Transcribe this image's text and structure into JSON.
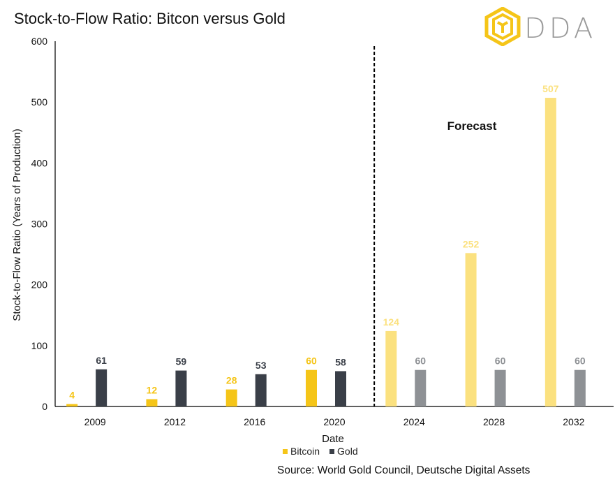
{
  "title": "Stock-to-Flow Ratio: Bitcon versus Gold",
  "logo": {
    "text": "DDA",
    "icon": "dda-logo-icon",
    "accent": "#F5C518"
  },
  "source": "Source: World Gold Council, Deutsche Digital Assets",
  "colors": {
    "bitcoin": "#F5C518",
    "bitcoin_forecast": "#FBE17F",
    "gold": "#3A3F48",
    "gold_forecast": "#8E9195"
  },
  "chart_data": {
    "type": "bar",
    "title": "Stock-to-Flow Ratio: Bitcon versus Gold",
    "xlabel": "Date",
    "ylabel": "Stock-to-Flow Ratio (Years of Production)",
    "ylim": [
      0,
      600
    ],
    "yticks": [
      0,
      100,
      200,
      300,
      400,
      500,
      600
    ],
    "grid": false,
    "legend": "bottom",
    "categories": [
      "2009",
      "2012",
      "2016",
      "2020",
      "2024",
      "2028",
      "2032"
    ],
    "series": [
      {
        "name": "Bitcoin",
        "values": [
          4,
          12,
          28,
          60,
          124,
          252,
          507
        ]
      },
      {
        "name": "Gold",
        "values": [
          61,
          59,
          53,
          58,
          60,
          60,
          60
        ]
      }
    ],
    "annotations": [
      {
        "text": "Forecast",
        "applies_from": "2024"
      }
    ]
  }
}
